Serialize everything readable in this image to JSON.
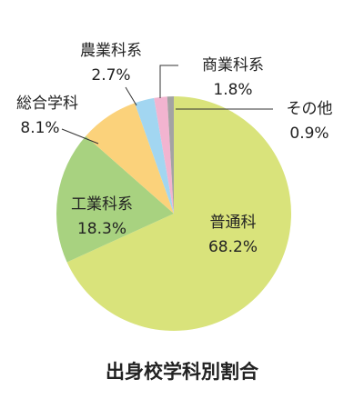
{
  "chart_data": {
    "type": "pie",
    "title": "出身校学科別割合",
    "categories": [
      "普通科",
      "工業科系",
      "総合学科",
      "農業科系",
      "商業科系",
      "その他"
    ],
    "values": [
      68.2,
      18.3,
      8.1,
      2.7,
      1.8,
      0.9
    ],
    "value_labels": [
      "68.2%",
      "18.3%",
      "8.1%",
      "2.7%",
      "1.8%",
      "0.9%"
    ],
    "colors": [
      "#d9e37b",
      "#a8d280",
      "#fbd27b",
      "#a2d6f1",
      "#f2b4d0",
      "#a3a3a3"
    ]
  }
}
